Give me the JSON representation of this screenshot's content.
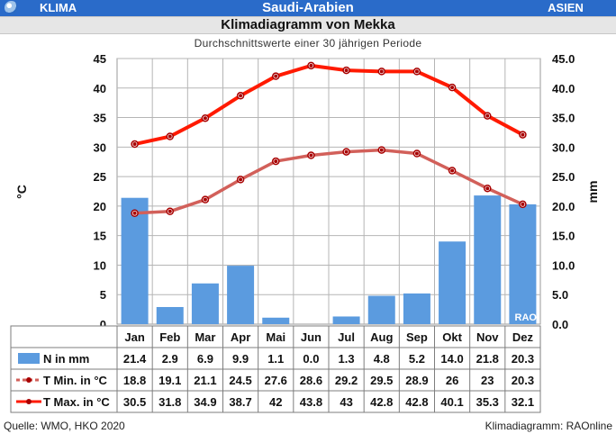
{
  "header": {
    "section": "KLIMA",
    "country": "Saudi-Arabien",
    "region": "ASIEN",
    "title": "Klimadiagramm von Mekka",
    "subtitle": "Durchschnittswerte einer 30 jährigen Periode"
  },
  "footer": {
    "source": "Quelle: WMO, HKO 2020",
    "credit": "Klimadiagramm: RAOnline"
  },
  "chart_data": {
    "type": "bar",
    "categories": [
      "Jan",
      "Feb",
      "Mar",
      "Apr",
      "Mai",
      "Jun",
      "Jul",
      "Aug",
      "Sep",
      "Okt",
      "Nov",
      "Dez"
    ],
    "ylabel": "°C",
    "y2label": "mm",
    "ylim": [
      0,
      45
    ],
    "yticks": [
      "0",
      "5",
      "10",
      "15",
      "20",
      "25",
      "30",
      "35",
      "40",
      "45"
    ],
    "y2ticks": [
      "0.0",
      "5.0",
      "10.0",
      "15.0",
      "20.0",
      "25.0",
      "30.0",
      "35.0",
      "40.0",
      "45.0"
    ],
    "watermark": "RAO",
    "series": [
      {
        "name": "N in mm",
        "type": "bar",
        "color": "#5b9bdf",
        "values": [
          21.4,
          2.9,
          6.9,
          9.9,
          1.1,
          0.0,
          1.3,
          4.8,
          5.2,
          14.0,
          21.8,
          20.3
        ],
        "labels": [
          "21.4",
          "2.9",
          "6.9",
          "9.9",
          "1.1",
          "0.0",
          "1.3",
          "4.8",
          "5.2",
          "14.0",
          "21.8",
          "20.3"
        ]
      },
      {
        "name": "T Min. in °C",
        "type": "line",
        "color": "#d2605a",
        "values": [
          18.8,
          19.1,
          21.1,
          24.5,
          27.6,
          28.6,
          29.2,
          29.5,
          28.9,
          26,
          23,
          20.3
        ],
        "labels": [
          "18.8",
          "19.1",
          "21.1",
          "24.5",
          "27.6",
          "28.6",
          "29.2",
          "29.5",
          "28.9",
          "26",
          "23",
          "20.3"
        ]
      },
      {
        "name": "T Max. in °C",
        "type": "line",
        "color": "#ff1a00",
        "values": [
          30.5,
          31.8,
          34.9,
          38.7,
          42,
          43.8,
          43,
          42.8,
          42.8,
          40.1,
          35.3,
          32.1
        ],
        "labels": [
          "30.5",
          "31.8",
          "34.9",
          "38.7",
          "42",
          "43.8",
          "43",
          "42.8",
          "42.8",
          "40.1",
          "35.3",
          "32.1"
        ]
      }
    ]
  }
}
